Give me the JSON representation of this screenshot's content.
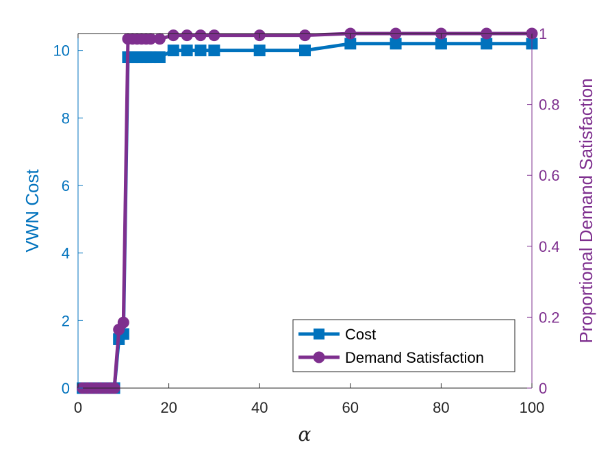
{
  "chart_data": {
    "type": "line",
    "title": "",
    "xlabel": "α",
    "ylabel_left": "VWN Cost",
    "ylabel_right": "Proportional Demand Satisfaction",
    "xlim": [
      0,
      100
    ],
    "ylim_left": [
      0,
      10.5
    ],
    "ylim_right": [
      0,
      1
    ],
    "x_ticks": [
      0,
      20,
      40,
      60,
      80,
      100
    ],
    "y_ticks_left": [
      0,
      2,
      4,
      6,
      8,
      10
    ],
    "y_ticks_right": [
      0,
      0.2,
      0.4,
      0.6,
      0.8,
      1
    ],
    "x_tick_labels": [
      "0",
      "20",
      "40",
      "60",
      "80",
      "100"
    ],
    "y_tick_labels_left": [
      "0",
      "2",
      "4",
      "6",
      "8",
      "10"
    ],
    "y_tick_labels_right": [
      "0",
      "0.2",
      "0.4",
      "0.6",
      "0.8",
      "1"
    ],
    "grid": false,
    "legend_position": "bottom-right",
    "colors": {
      "cost": "#0072BD",
      "satisfaction": "#7E2F8E",
      "axis": "#262626"
    },
    "series": [
      {
        "name": "Cost",
        "axis": "left",
        "marker": "square",
        "x": [
          1,
          2,
          3,
          4,
          5,
          6,
          7,
          8,
          9,
          10,
          11,
          12,
          13,
          14,
          15,
          16,
          18,
          21,
          24,
          27,
          30,
          40,
          50,
          60,
          70,
          80,
          90,
          100
        ],
        "y": [
          0,
          0,
          0,
          0,
          0,
          0,
          0,
          0,
          1.45,
          1.6,
          9.8,
          9.8,
          9.8,
          9.8,
          9.8,
          9.8,
          9.8,
          10.0,
          10.0,
          10.0,
          10.0,
          10.0,
          10.0,
          10.2,
          10.2,
          10.2,
          10.2,
          10.2
        ]
      },
      {
        "name": "Demand Satisfaction",
        "axis": "right",
        "marker": "circle",
        "x": [
          1,
          2,
          3,
          4,
          5,
          6,
          7,
          8,
          9,
          10,
          11,
          12,
          13,
          14,
          15,
          16,
          18,
          21,
          24,
          27,
          30,
          40,
          50,
          60,
          70,
          80,
          90,
          100
        ],
        "y": [
          0,
          0,
          0,
          0,
          0,
          0,
          0,
          0,
          0.165,
          0.185,
          0.985,
          0.985,
          0.985,
          0.985,
          0.985,
          0.985,
          0.985,
          0.995,
          0.995,
          0.995,
          0.995,
          0.995,
          0.995,
          1.0,
          1.0,
          1.0,
          1.0,
          1.0
        ]
      }
    ]
  }
}
